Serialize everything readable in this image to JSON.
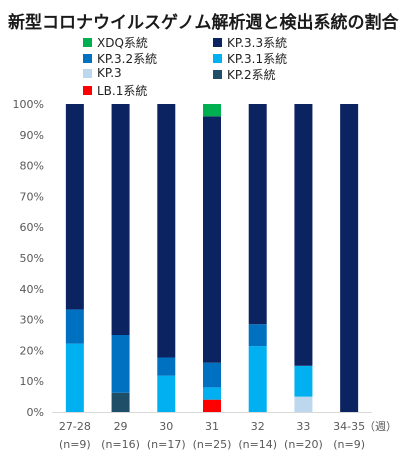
{
  "chart_data": {
    "type": "bar",
    "stacked": true,
    "title": "新型コロナウイルスゲノム解析週と検出系統の割合",
    "xunit": "（週）",
    "categories": [
      "27-28",
      "29",
      "30",
      "31",
      "32",
      "33",
      "34-35"
    ],
    "category_counts": [
      "(n=9)",
      "(n=16)",
      "(n=17)",
      "(n=25)",
      "(n=14)",
      "(n=20)",
      "(n=9)"
    ],
    "ylim": [
      0,
      100
    ],
    "yticks": [
      "0%",
      "10%",
      "20%",
      "30%",
      "40%",
      "50%",
      "60%",
      "70%",
      "80%",
      "90%",
      "100%"
    ],
    "grid": false,
    "legend_position": "top",
    "series": [
      {
        "name": "LB.1系統",
        "color": "#ff0000",
        "values": [
          0,
          0,
          0,
          4,
          0,
          0,
          0
        ]
      },
      {
        "name": "KP.2系統",
        "color": "#1f4e68",
        "values": [
          0,
          6.25,
          0,
          0,
          0,
          0,
          0
        ]
      },
      {
        "name": "KP.3",
        "color": "#bdd7ee",
        "values": [
          0,
          0,
          0,
          0,
          0,
          5,
          0
        ]
      },
      {
        "name": "KP.3.1系統",
        "color": "#00b0f0",
        "values": [
          22.2,
          0,
          11.8,
          4,
          21.4,
          10,
          0
        ]
      },
      {
        "name": "KP.3.2系統",
        "color": "#0070c0",
        "values": [
          11.1,
          18.75,
          5.9,
          8,
          7.1,
          0,
          0
        ]
      },
      {
        "name": "KP.3.3系統",
        "color": "#0c2361",
        "values": [
          66.7,
          75,
          82.3,
          80,
          71.5,
          85,
          100
        ]
      },
      {
        "name": "XDQ系統",
        "color": "#00b050",
        "values": [
          0,
          0,
          0,
          4,
          0,
          0,
          0
        ]
      }
    ]
  }
}
